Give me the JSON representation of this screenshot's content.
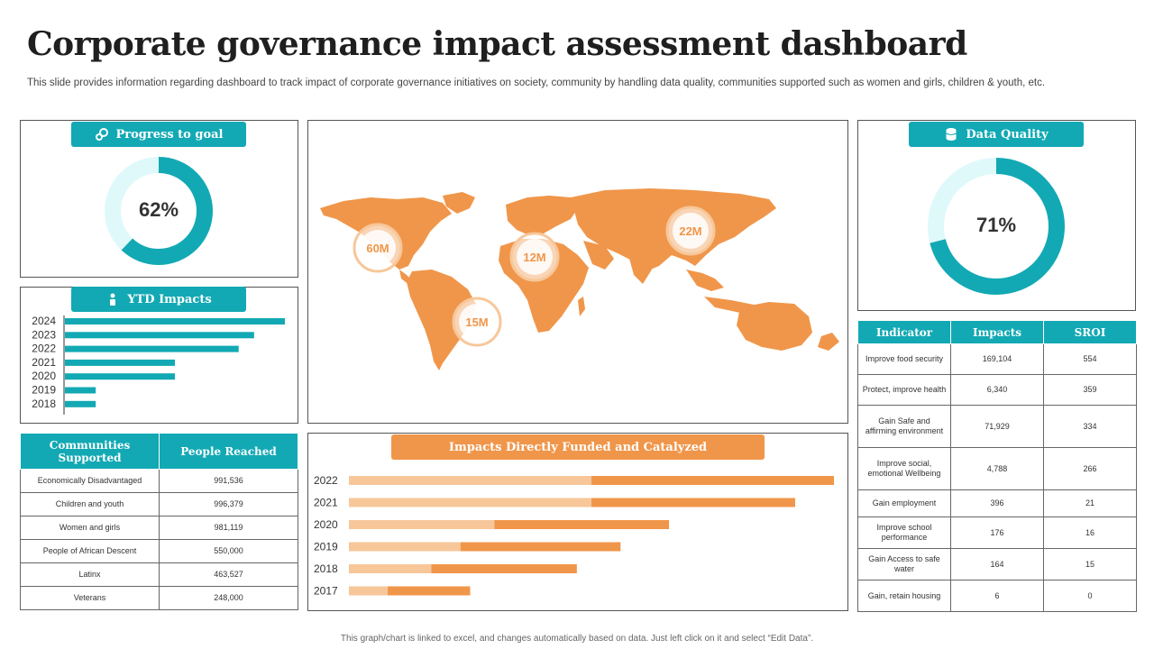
{
  "header": {
    "title": "Corporate governance impact assessment dashboard",
    "subtitle": "This slide provides information regarding dashboard to track impact of corporate governance initiatives on society, community by handling data quality, communities supported such as women and girls, children & youth, etc."
  },
  "progress": {
    "title": "Progress to goal",
    "value": 0.62,
    "label": "62%",
    "icon": "gears-icon"
  },
  "quality": {
    "title": "Data Quality",
    "value": 0.71,
    "label": "71%",
    "icon": "database-icon"
  },
  "map": {
    "markers": [
      {
        "label": "60M",
        "region": "north-america"
      },
      {
        "label": "12M",
        "region": "africa-west"
      },
      {
        "label": "22M",
        "region": "asia"
      },
      {
        "label": "15M",
        "region": "south-america"
      }
    ]
  },
  "chart_data": [
    {
      "type": "bar",
      "orientation": "horizontal",
      "title": "YTD Impacts",
      "categories": [
        "2024",
        "2023",
        "2022",
        "2021",
        "2020",
        "2019",
        "2018"
      ],
      "values": [
        100,
        86,
        79,
        50,
        50,
        14,
        14
      ]
    },
    {
      "type": "bar",
      "orientation": "horizontal",
      "stacked": true,
      "title": "Impacts Directly Funded and Catalyzed",
      "categories": [
        "2022",
        "2021",
        "2020",
        "2019",
        "2018",
        "2017"
      ],
      "series": [
        {
          "values": [
            50,
            50,
            30,
            23,
            17,
            8
          ],
          "color": "#f7c79a"
        },
        {
          "values": [
            50,
            42,
            36,
            33,
            30,
            17
          ],
          "color": "#f0964a"
        }
      ]
    }
  ],
  "communities": {
    "headers": [
      "Communities Supported",
      "People Reached"
    ],
    "rows": [
      [
        "Economically Disadvantaged",
        "991,536"
      ],
      [
        "Children and youth",
        "996,379"
      ],
      [
        "Women and girls",
        "981,119"
      ],
      [
        "People of African Descent",
        "550,000"
      ],
      [
        "Latinx",
        "463,527"
      ],
      [
        "Veterans",
        "248,000"
      ]
    ]
  },
  "indicators": {
    "headers": [
      "Indicator",
      "Impacts",
      "SROI"
    ],
    "rows": [
      [
        "Improve food security",
        "169,104",
        "554"
      ],
      [
        "Protect, improve health",
        "6,340",
        "359"
      ],
      [
        "Gain Safe and affirming environment",
        "71,929",
        "334"
      ],
      [
        "Improve social, emotional Wellbeing",
        "4,788",
        "266"
      ],
      [
        "Gain employment",
        "396",
        "21"
      ],
      [
        "Improve school performance",
        "176",
        "16"
      ],
      [
        "Gain Access to safe water",
        "164",
        "15"
      ],
      [
        "Gain, retain housing",
        "6",
        "0"
      ]
    ]
  },
  "footer": "This graph/chart is linked to excel, and changes automatically based on data. Just left click on it and select “Edit Data”.",
  "colors": {
    "teal": "#12a9b4",
    "teal_light": "#dff9fb",
    "orange": "#f0964a",
    "orange_light": "#f7c79a"
  }
}
